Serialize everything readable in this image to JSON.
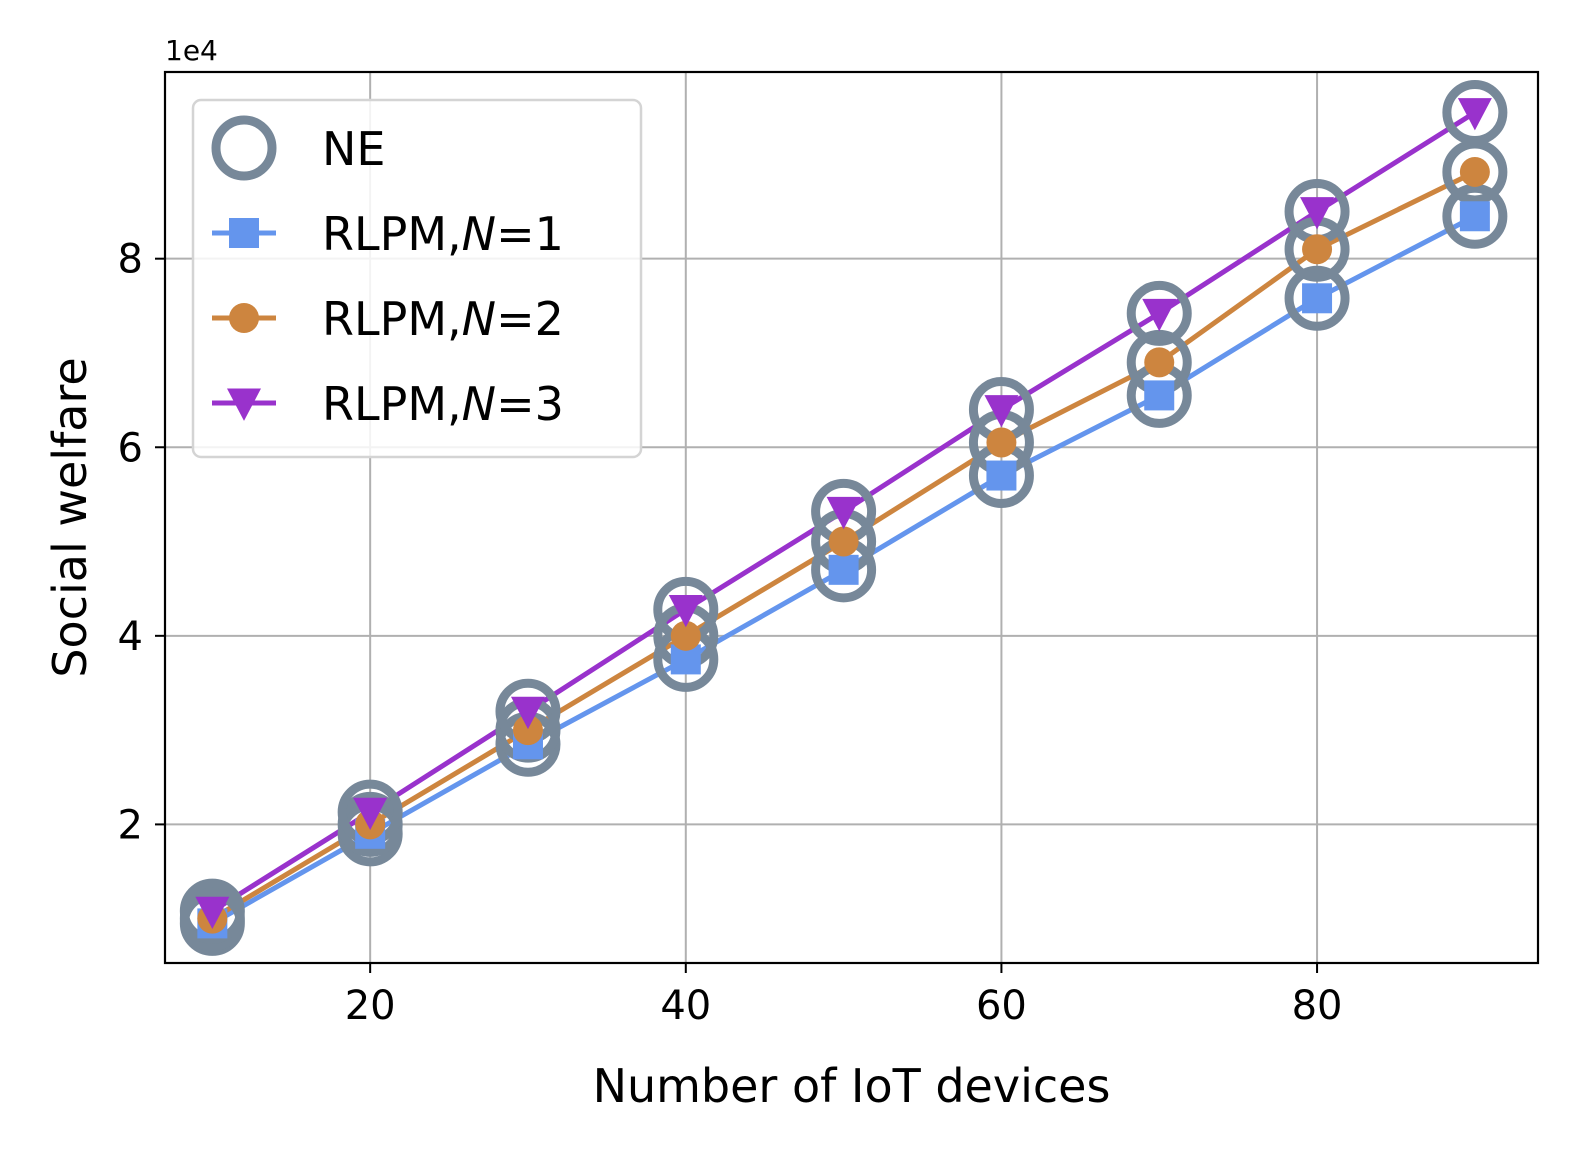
{
  "chart_data": {
    "type": "line",
    "title": "",
    "xlabel": "Number of IoT devices",
    "ylabel": "Social welfare",
    "y_offset_label": "1e4",
    "y_scale_factor": 10000,
    "xlim": [
      7,
      94
    ],
    "ylim": [
      5300,
      99800
    ],
    "x_ticks": [
      20,
      40,
      60,
      80
    ],
    "y_ticks": [
      20000,
      40000,
      60000,
      80000
    ],
    "x_tick_labels": [
      "20",
      "40",
      "60",
      "80"
    ],
    "y_tick_labels": [
      "2",
      "4",
      "6",
      "8"
    ],
    "grid": true,
    "legend_position": "upper left",
    "x": [
      10,
      20,
      30,
      40,
      50,
      60,
      70,
      80,
      90
    ],
    "series": [
      {
        "name_prefix": "RLPM,",
        "name_var": "N",
        "name_suffix": "=1",
        "color": "#6495ED",
        "marker": "square",
        "values": [
          9500,
          19000,
          28500,
          37500,
          47000,
          57000,
          65500,
          75800,
          84500
        ]
      },
      {
        "name_prefix": "RLPM,",
        "name_var": "N",
        "name_suffix": "=2",
        "color": "#CD853F",
        "marker": "circle",
        "values": [
          10000,
          20000,
          30000,
          40000,
          50000,
          60500,
          69000,
          81000,
          89200
        ]
      },
      {
        "name_prefix": "RLPM,",
        "name_var": "N",
        "name_suffix": "=3",
        "color": "#9932CC",
        "marker": "triangle-down",
        "values": [
          10800,
          21300,
          32000,
          42800,
          53200,
          64000,
          74200,
          85000,
          95500
        ]
      }
    ],
    "ne": {
      "name": "NE",
      "color": "#778899",
      "marker": "open-circle",
      "values_per_series": [
        [
          9500,
          19000,
          28500,
          37500,
          47000,
          57000,
          65500,
          75800,
          84500
        ],
        [
          10000,
          20000,
          30000,
          40000,
          50000,
          60500,
          69000,
          81000,
          89200
        ],
        [
          10800,
          21300,
          32000,
          42800,
          53200,
          64000,
          74200,
          85000,
          95500
        ]
      ]
    }
  }
}
